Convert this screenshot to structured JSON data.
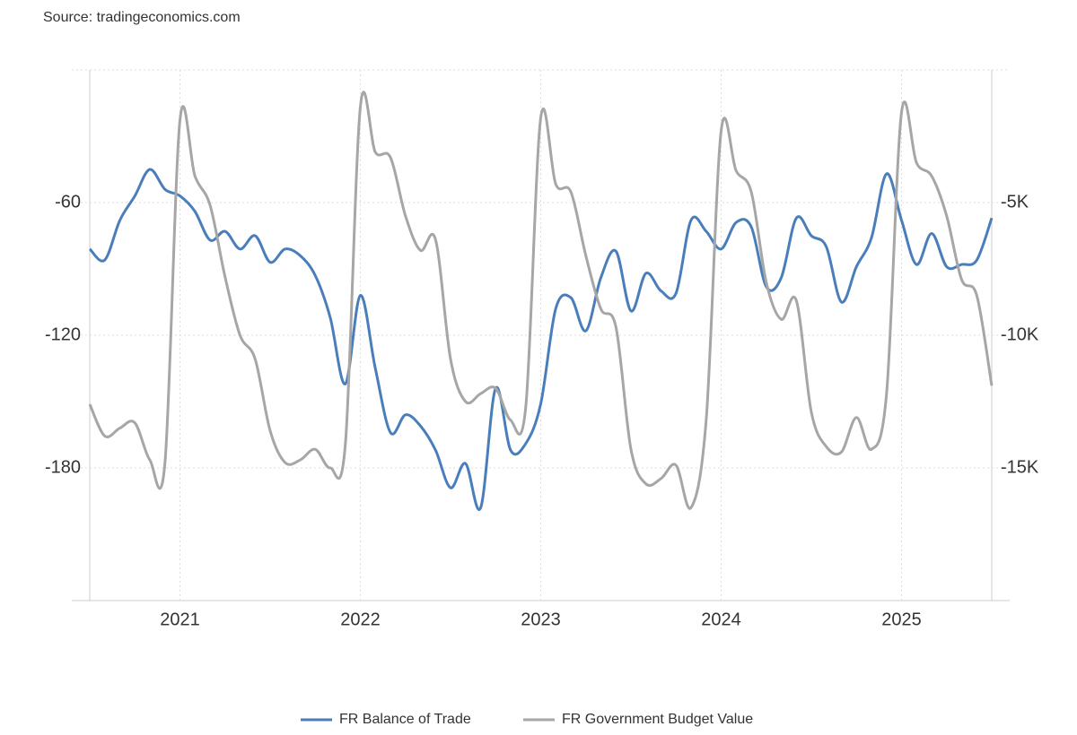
{
  "chart_data": {
    "type": "line",
    "source": "Source: tradingeconomics.com",
    "x": [
      2020.5,
      2020.583,
      2020.667,
      2020.75,
      2020.833,
      2020.917,
      2021,
      2021.083,
      2021.167,
      2021.25,
      2021.333,
      2021.417,
      2021.5,
      2021.583,
      2021.667,
      2021.75,
      2021.833,
      2021.917,
      2022,
      2022.083,
      2022.167,
      2022.25,
      2022.333,
      2022.417,
      2022.5,
      2022.583,
      2022.667,
      2022.75,
      2022.833,
      2022.917,
      2023,
      2023.083,
      2023.167,
      2023.25,
      2023.333,
      2023.417,
      2023.5,
      2023.583,
      2023.667,
      2023.75,
      2023.833,
      2023.917,
      2024,
      2024.083,
      2024.167,
      2024.25,
      2024.333,
      2024.417,
      2024.5,
      2024.583,
      2024.667,
      2024.75,
      2024.833,
      2024.917,
      2025,
      2025.083,
      2025.167,
      2025.25,
      2025.333,
      2025.417,
      2025.5
    ],
    "series": [
      {
        "name": "FR Balance of Trade",
        "color": "#4a7ebb",
        "axis": "y",
        "values": [
          -81,
          -86,
          -68,
          -57,
          -45,
          -54,
          -57,
          -64,
          -77,
          -73,
          -81,
          -75,
          -87,
          -81,
          -84,
          -93,
          -112,
          -142,
          -102,
          -135,
          -164,
          -156,
          -161,
          -172,
          -189,
          -178,
          -198,
          -144,
          -172,
          -169,
          -151,
          -108,
          -103,
          -118,
          -94,
          -82,
          -109,
          -92,
          -100,
          -101,
          -68,
          -73,
          -81,
          -69,
          -71,
          -98,
          -94,
          -67,
          -75,
          -80,
          -105,
          -89,
          -76,
          -47,
          -68,
          -88,
          -74,
          -89,
          -88,
          -86,
          -67
        ]
      },
      {
        "name": "FR Government Budget Value",
        "color": "#a6a6a6",
        "axis": "y2",
        "values": [
          -12600,
          -13800,
          -13500,
          -13300,
          -14700,
          -14800,
          -1900,
          -4000,
          -5100,
          -7800,
          -10000,
          -10900,
          -13600,
          -14800,
          -14700,
          -14300,
          -15000,
          -14100,
          -1400,
          -3100,
          -3300,
          -5500,
          -6800,
          -6400,
          -10900,
          -12500,
          -12200,
          -12000,
          -13200,
          -12700,
          -1800,
          -4300,
          -4600,
          -7000,
          -9000,
          -9700,
          -14300,
          -15600,
          -15400,
          -14900,
          -16500,
          -13200,
          -2300,
          -3800,
          -4600,
          -8000,
          -9400,
          -8700,
          -12900,
          -14200,
          -14400,
          -13100,
          -14300,
          -12200,
          -1600,
          -3500,
          -4000,
          -5500,
          -7900,
          -8500,
          -11900
        ]
      }
    ],
    "xlim": [
      2020.5,
      2025.5
    ],
    "xticks": [
      2021,
      2022,
      2023,
      2024,
      2025
    ],
    "ylim": [
      -240,
      0
    ],
    "yticks": [
      -180,
      -120,
      -60
    ],
    "y2lim": [
      -20000,
      0
    ],
    "y2ticks": [
      {
        "value": -15000,
        "label": "-15K"
      },
      {
        "value": -10000,
        "label": "-10K"
      },
      {
        "value": -5000,
        "label": "-5K"
      }
    ],
    "grid": true,
    "legend": "bottom"
  }
}
